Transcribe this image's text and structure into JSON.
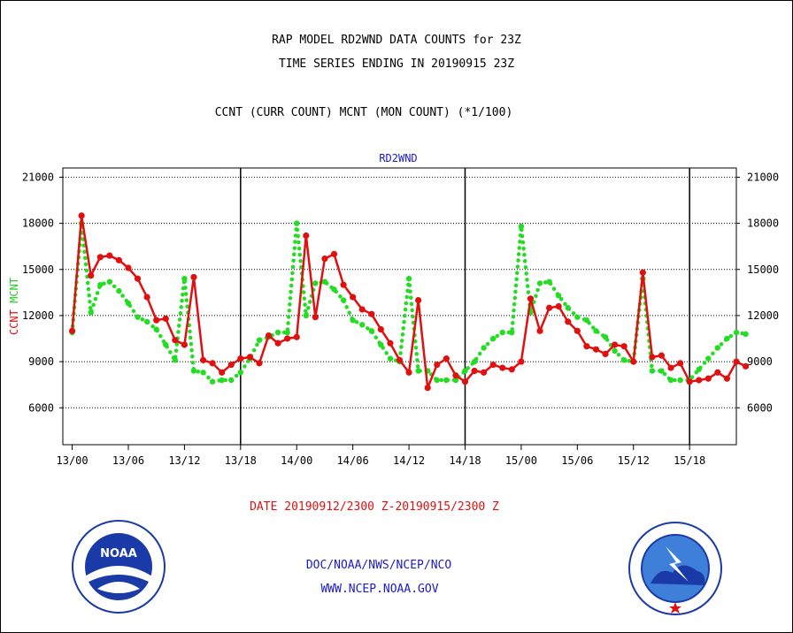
{
  "chart_data": {
    "type": "line",
    "title": "RAP MODEL RD2WND DATA COUNTS for 23Z",
    "subtitle": "TIME SERIES ENDING IN 20190915 23Z",
    "description": "CCNT (CURR COUNT) MCNT (MON COUNT) (*1/100)",
    "panel_label": "RD2WND",
    "xlabel": "DATE 20190912/2300 Z-20190915/2300 Z",
    "ylabel_parts": [
      {
        "text": "CCNT",
        "color": "#e01010"
      },
      {
        "text": "MCNT",
        "color": "#22cc22"
      }
    ],
    "ylim": [
      3600,
      21600
    ],
    "y_ticks": [
      6000,
      9000,
      12000,
      15000,
      18000,
      21000
    ],
    "xlim": [
      -1,
      71
    ],
    "x_ticks": [
      {
        "x": 0,
        "label": "13/00"
      },
      {
        "x": 6,
        "label": "13/06"
      },
      {
        "x": 12,
        "label": "13/12"
      },
      {
        "x": 18,
        "label": "13/18"
      },
      {
        "x": 24,
        "label": "14/00"
      },
      {
        "x": 30,
        "label": "14/06"
      },
      {
        "x": 36,
        "label": "14/12"
      },
      {
        "x": 42,
        "label": "14/18"
      },
      {
        "x": 48,
        "label": "15/00"
      },
      {
        "x": 54,
        "label": "15/06"
      },
      {
        "x": 60,
        "label": "15/12"
      },
      {
        "x": 66,
        "label": "15/18"
      }
    ],
    "day_boundaries": [
      18,
      42,
      66
    ],
    "grid": true,
    "series": [
      {
        "name": "CCNT",
        "color": "#e01010",
        "style": "solid",
        "values": [
          11000,
          18500,
          14600,
          15800,
          15900,
          15600,
          15100,
          14400,
          13200,
          11700,
          11800,
          10400,
          10100,
          14500,
          9100,
          8900,
          8300,
          8800,
          9200,
          9300,
          8900,
          10700,
          10200,
          10500,
          10600,
          17200,
          11900,
          15700,
          16000,
          14000,
          13200,
          12400,
          12100,
          11100,
          10200,
          9100,
          8300,
          13000,
          7300,
          8800,
          9200,
          8100,
          7700,
          8400,
          8300,
          8800,
          8600,
          8500,
          9000,
          13100,
          11000,
          12500,
          12600,
          11600,
          11000,
          10000,
          9800,
          9500,
          10100,
          10000,
          9000,
          14800,
          9300,
          9400,
          8600,
          8900,
          7700,
          7800,
          7900,
          8300,
          7900,
          9000,
          8700
        ]
      },
      {
        "name": "MCNT",
        "color": "#22dd22",
        "style": "dotted",
        "values": [
          10900,
          18000,
          12200,
          14000,
          14200,
          13600,
          12800,
          11900,
          11600,
          11100,
          10100,
          9100,
          14400,
          8400,
          8300,
          7700,
          7800,
          7800,
          8300,
          9200,
          10400,
          10600,
          10900,
          10900,
          18000,
          12000,
          14100,
          14200,
          13700,
          13000,
          11700,
          11400,
          11000,
          10100,
          9200,
          9000,
          14400,
          8400,
          8400,
          7800,
          7800,
          7800,
          8400,
          9000,
          9900,
          10500,
          10900,
          10900,
          17800,
          12200,
          14100,
          14200,
          13300,
          12500,
          11900,
          11700,
          11000,
          10600,
          9700,
          9100,
          9000,
          14400,
          8400,
          8400,
          7800,
          7800,
          7800,
          8500,
          9200,
          9900,
          10500,
          10900,
          10800
        ]
      }
    ]
  },
  "footer": {
    "org": "DOC/NOAA/NWS/NCEP/NCO",
    "website": "WWW.NCEP.NOAA.GOV"
  }
}
